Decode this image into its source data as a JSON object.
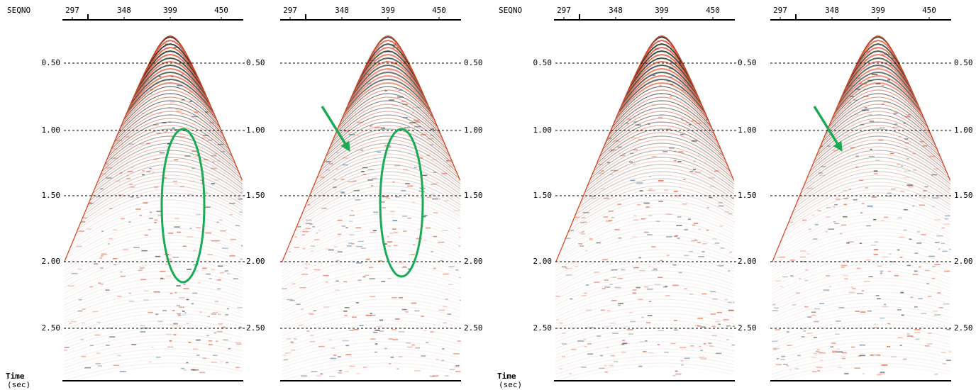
{
  "figures": [
    {
      "x_axis_label": "SEQNO",
      "time_label": "Time",
      "time_unit": "(sec)",
      "left_y_ticks": [
        "0.50",
        "1.00",
        "1.50",
        "2.00",
        "2.50"
      ],
      "panels": [
        {
          "x_ticks": [
            "297",
            "348",
            "399",
            "450"
          ],
          "right_y_ticks": [
            "0.50",
            "1.00",
            "1.50",
            "2.00",
            "2.50"
          ]
        },
        {
          "x_ticks": [
            "297",
            "348",
            "399",
            "450"
          ],
          "right_y_ticks": [
            "0.50",
            "1.00",
            "1.50",
            "2.00",
            "2.50"
          ]
        }
      ]
    },
    {
      "x_axis_label": "SEQNO",
      "time_label": "Time",
      "time_unit": "(sec)",
      "left_y_ticks": [
        "0.50",
        "1.00",
        "1.50",
        "2.00",
        "2.50"
      ],
      "panels": [
        {
          "x_ticks": [
            "297",
            "348",
            "399",
            "450"
          ],
          "right_y_ticks": [
            "0.50",
            "1.00",
            "1.50",
            "2.00",
            "2.50"
          ]
        },
        {
          "x_ticks": [
            "297",
            "348",
            "399",
            "450"
          ],
          "right_y_ticks": [
            "0.50",
            "1.00",
            "1.50",
            "2.00",
            "2.50"
          ]
        }
      ]
    }
  ]
}
